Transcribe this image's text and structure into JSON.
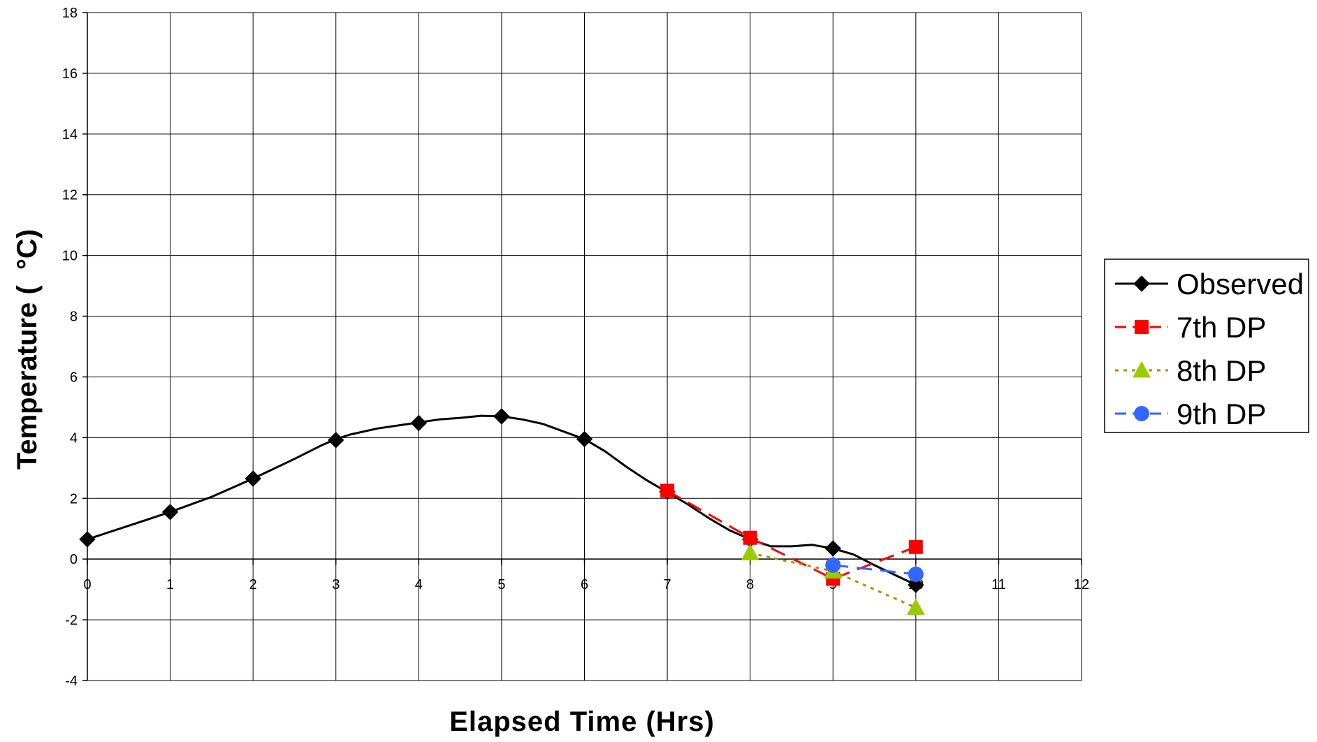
{
  "chart_data": {
    "type": "line",
    "xlabel": "Elapsed Time (Hrs)",
    "ylabel": "Temperature (  °C)",
    "xlim": [
      0,
      12
    ],
    "ylim": [
      -4,
      18
    ],
    "x_ticks": [
      "0",
      "1",
      "2",
      "3",
      "4",
      "5",
      "6",
      "7",
      "8",
      "9",
      "10",
      "11",
      "12"
    ],
    "y_ticks": [
      "-4",
      "-2",
      "0",
      "2",
      "4",
      "6",
      "8",
      "10",
      "12",
      "14",
      "16",
      "18"
    ],
    "grid": true,
    "legend_position": "right",
    "series": [
      {
        "name": "Observed",
        "color": "#000000",
        "line_style": "solid",
        "marker": "diamond",
        "curve": [
          [
            0,
            0.65
          ],
          [
            0.5,
            1.1
          ],
          [
            1,
            1.55
          ],
          [
            1.5,
            2.05
          ],
          [
            2,
            2.65
          ],
          [
            2.5,
            3.3
          ],
          [
            2.83,
            3.75
          ],
          [
            3,
            3.95
          ],
          [
            3.17,
            4.1
          ],
          [
            3.5,
            4.3
          ],
          [
            4,
            4.5
          ],
          [
            4.25,
            4.6
          ],
          [
            4.5,
            4.65
          ],
          [
            4.75,
            4.72
          ],
          [
            5,
            4.7
          ],
          [
            5.25,
            4.6
          ],
          [
            5.5,
            4.45
          ],
          [
            5.75,
            4.2
          ],
          [
            6,
            3.95
          ],
          [
            6.25,
            3.55
          ],
          [
            6.5,
            3.05
          ],
          [
            6.75,
            2.6
          ],
          [
            7,
            2.2
          ],
          [
            7.25,
            1.8
          ],
          [
            7.5,
            1.35
          ],
          [
            7.75,
            0.95
          ],
          [
            8,
            0.65
          ],
          [
            8.25,
            0.42
          ],
          [
            8.5,
            0.42
          ],
          [
            8.75,
            0.47
          ],
          [
            9,
            0.35
          ],
          [
            9.25,
            0.15
          ],
          [
            9.5,
            -0.2
          ],
          [
            10,
            -0.85
          ]
        ],
        "markers": [
          [
            0,
            0.65
          ],
          [
            1,
            1.55
          ],
          [
            2,
            2.65
          ],
          [
            3,
            3.92
          ],
          [
            4,
            4.48
          ],
          [
            5,
            4.7
          ],
          [
            6,
            3.95
          ],
          [
            7,
            2.22
          ],
          [
            8,
            0.65
          ],
          [
            9,
            0.35
          ],
          [
            10,
            -0.85
          ]
        ]
      },
      {
        "name": "7th DP",
        "color": "#ff0000",
        "line_style": "dashed",
        "marker": "square",
        "curve": [
          [
            7,
            2.25
          ],
          [
            8,
            0.7
          ],
          [
            9,
            -0.65
          ],
          [
            10,
            0.4
          ]
        ],
        "markers": [
          [
            7,
            2.25
          ],
          [
            8,
            0.7
          ],
          [
            9,
            -0.65
          ],
          [
            10,
            0.4
          ]
        ]
      },
      {
        "name": "8th DP",
        "color": "#999900",
        "marker_color": "#99cc00",
        "line_style": "dotted",
        "marker": "triangle",
        "curve": [
          [
            8,
            0.2
          ],
          [
            9,
            -0.4
          ],
          [
            10,
            -1.6
          ]
        ],
        "markers": [
          [
            8,
            0.2
          ],
          [
            9,
            -0.4
          ],
          [
            10,
            -1.6
          ]
        ]
      },
      {
        "name": "9th DP",
        "color": "#3366ff",
        "line_style": "dashed",
        "marker": "circle",
        "curve": [
          [
            9,
            -0.2
          ],
          [
            10,
            -0.5
          ]
        ],
        "markers": [
          [
            9,
            -0.2
          ],
          [
            10,
            -0.5
          ]
        ]
      }
    ]
  }
}
